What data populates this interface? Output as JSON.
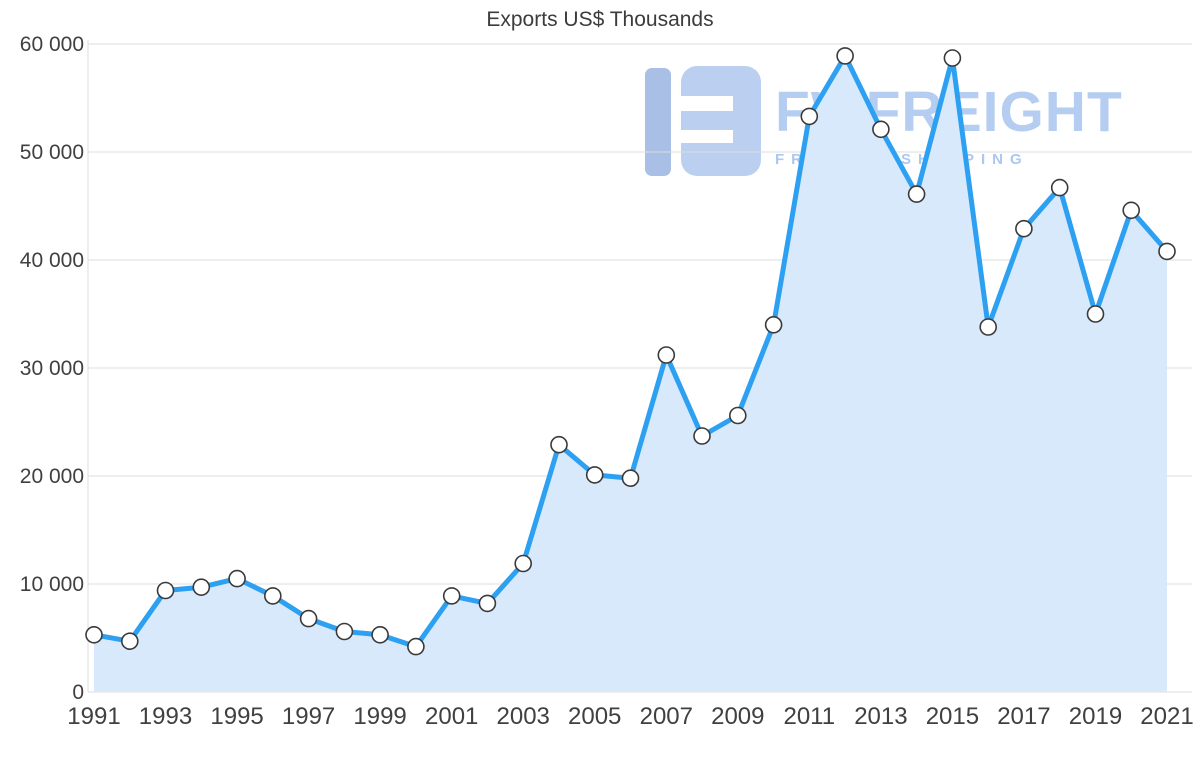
{
  "title": "Exports US$ Thousands",
  "watermark": {
    "brand": "FWFREIGHT",
    "tagline": "FREIGHT SHIPPING"
  },
  "colors": {
    "line": "#2da0f2",
    "fill": "#d7e9fb",
    "marker_fill": "#ffffff",
    "marker_stroke": "#3a3a3a",
    "grid": "#dcdcdc",
    "axis_text": "#404040",
    "watermark_dark": "#93aede",
    "watermark_light": "#a9c4ee"
  },
  "chart_data": {
    "type": "area",
    "title": "Exports US$ Thousands",
    "xlabel": "",
    "ylabel": "Exports US$ Thousands",
    "x": [
      1991,
      1992,
      1993,
      1994,
      1995,
      1996,
      1997,
      1998,
      1999,
      2000,
      2001,
      2002,
      2003,
      2004,
      2005,
      2006,
      2007,
      2008,
      2009,
      2010,
      2011,
      2012,
      2013,
      2014,
      2015,
      2016,
      2017,
      2018,
      2019,
      2020,
      2021
    ],
    "values": [
      5300,
      4700,
      9400,
      9700,
      10500,
      8900,
      6800,
      5600,
      5300,
      4200,
      8900,
      8200,
      11900,
      22900,
      20100,
      19800,
      31200,
      23700,
      25600,
      34000,
      53300,
      58900,
      52100,
      46100,
      58700,
      33800,
      42900,
      46700,
      35000,
      44600,
      40800
    ],
    "ylim": [
      0,
      60000
    ],
    "ytick_step": 10000,
    "ytick_labels": [
      "0",
      "10 000",
      "20 000",
      "30 000",
      "40 000",
      "50 000",
      "60 000"
    ],
    "xtick_labels": [
      "1991",
      "1993",
      "1995",
      "1997",
      "1999",
      "2001",
      "2003",
      "2005",
      "2007",
      "2009",
      "2011",
      "2013",
      "2015",
      "2017",
      "2019",
      "2021"
    ],
    "grid": true,
    "legend": false
  }
}
